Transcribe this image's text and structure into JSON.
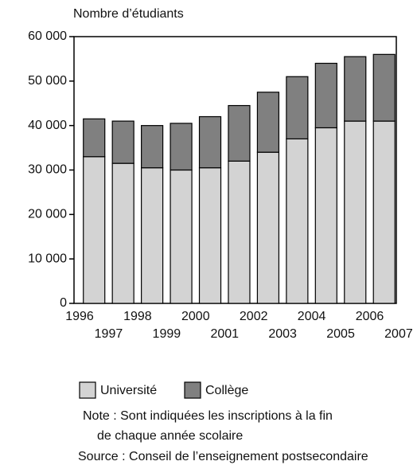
{
  "chart_data": {
    "type": "stacked_bar",
    "y_axis_label": "Nombre d’étudiants",
    "categories": [
      null,
      null,
      null,
      null,
      null,
      null,
      null,
      null,
      null,
      null,
      null
    ],
    "x_tick_labels": [
      "1996",
      "1997",
      "1998",
      "1999",
      "2000",
      "2001",
      "2002",
      "2003",
      "2004",
      "2005",
      "2006",
      "2007"
    ],
    "series": [
      {
        "name": "Université",
        "color": "#d3d3d3",
        "values": [
          33000,
          31500,
          30500,
          30000,
          30500,
          32000,
          34000,
          37000,
          39500,
          41000,
          41000
        ]
      },
      {
        "name": "Collège",
        "color": "#808080",
        "values": [
          8500,
          9500,
          9500,
          10500,
          11500,
          12500,
          13500,
          14000,
          14500,
          14500,
          15000
        ]
      }
    ],
    "ylim": [
      0,
      60000
    ],
    "yticks": [
      {
        "value": 0,
        "label": "0"
      },
      {
        "value": 10000,
        "label": "10 000"
      },
      {
        "value": 20000,
        "label": "20 000"
      },
      {
        "value": 30000,
        "label": "30 000"
      },
      {
        "value": 40000,
        "label": "40 000"
      },
      {
        "value": 50000,
        "label": "50 000"
      },
      {
        "value": 60000,
        "label": "60 000"
      }
    ],
    "notes": [
      "Note : Sont indiquées les inscriptions à la fin",
      "de chaque année scolaire"
    ],
    "source": "Source : Conseil de l’enseignement postsecondaire"
  }
}
